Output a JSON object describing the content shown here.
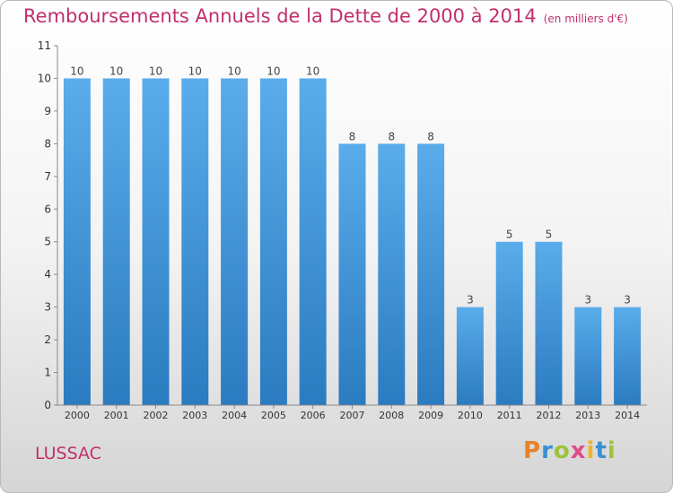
{
  "header": {
    "title": "Remboursements Annuels de la Dette de 2000 à 2014",
    "unit": "(en milliers d'€)"
  },
  "footer": {
    "place": "LUSSAC",
    "logo": [
      "P",
      "r",
      "o",
      "x",
      "i",
      "t",
      "i"
    ],
    "logo_colors": [
      "#e8822a",
      "#3a8fd1",
      "#9dc23b",
      "#e04b8a",
      "#f0b429",
      "#3a8fd1",
      "#9dc23b"
    ]
  },
  "chart_data": {
    "type": "bar",
    "categories": [
      "2000",
      "2001",
      "2002",
      "2003",
      "2004",
      "2005",
      "2006",
      "2007",
      "2008",
      "2009",
      "2010",
      "2011",
      "2012",
      "2013",
      "2014"
    ],
    "values": [
      10,
      10,
      10,
      10,
      10,
      10,
      10,
      8,
      8,
      8,
      3,
      5,
      5,
      3,
      3
    ],
    "ylim": [
      0,
      11
    ],
    "yticks": [
      0,
      1,
      2,
      3,
      4,
      5,
      6,
      7,
      8,
      9,
      10,
      11
    ],
    "grid": false,
    "colors": {
      "bar_top": "#5aacea",
      "bar_bottom": "#2b7bc0"
    }
  }
}
